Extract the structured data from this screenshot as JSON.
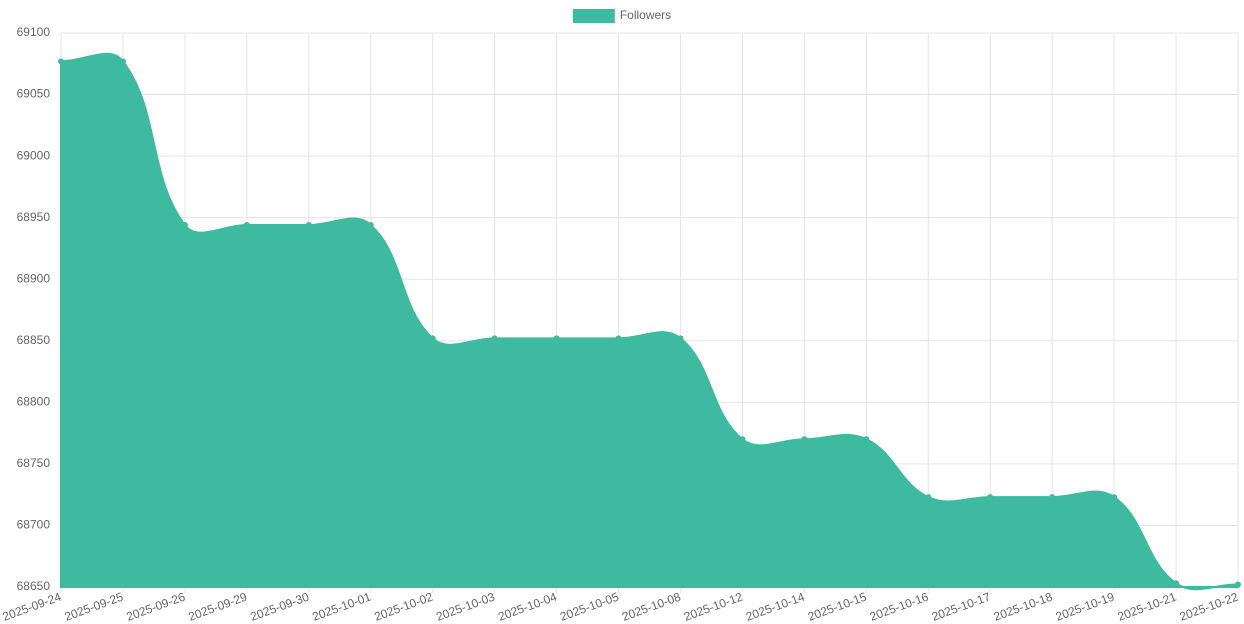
{
  "chart_data": {
    "type": "area",
    "categories": [
      "2025-09-24",
      "2025-09-25",
      "2025-09-26",
      "2025-09-29",
      "2025-09-30",
      "2025-10-01",
      "2025-10-02",
      "2025-10-03",
      "2025-10-04",
      "2025-10-05",
      "2025-10-08",
      "2025-10-12",
      "2025-10-14",
      "2025-10-15",
      "2025-10-16",
      "2025-10-17",
      "2025-10-18",
      "2025-10-19",
      "2025-10-21",
      "2025-10-22"
    ],
    "series": [
      {
        "name": "Followers",
        "color": "#3dba9f",
        "values": [
          69077,
          69077,
          68944,
          68944,
          68944,
          68944,
          68852,
          68852,
          68852,
          68852,
          68852,
          68770,
          68770,
          68770,
          68723,
          68723,
          68723,
          68723,
          68653,
          68652
        ]
      }
    ],
    "ylim": [
      68650,
      69100
    ],
    "yticks": [
      68650,
      68700,
      68750,
      68800,
      68850,
      68900,
      68950,
      69000,
      69050,
      69100
    ],
    "grid": true,
    "legend": "top"
  }
}
